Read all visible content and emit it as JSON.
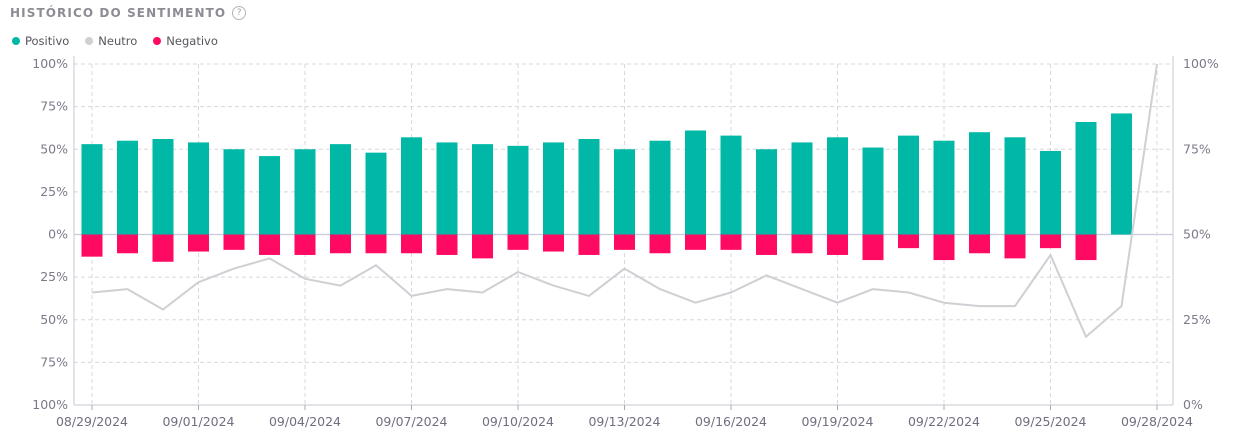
{
  "header": {
    "title": "HISTÓRICO DO SENTIMENTO",
    "help_icon": "question-circle-icon"
  },
  "legend": [
    {
      "label": "Positivo",
      "color": "#00b8a5"
    },
    {
      "label": "Neutro",
      "color": "#cfcfd4"
    },
    {
      "label": "Negativo",
      "color": "#ff0a62"
    }
  ],
  "chart_data": {
    "type": "bar",
    "x": [
      "08/29/2024",
      "08/30/2024",
      "08/31/2024",
      "09/01/2024",
      "09/02/2024",
      "09/03/2024",
      "09/04/2024",
      "09/05/2024",
      "09/06/2024",
      "09/07/2024",
      "09/08/2024",
      "09/09/2024",
      "09/10/2024",
      "09/11/2024",
      "09/12/2024",
      "09/13/2024",
      "09/14/2024",
      "09/15/2024",
      "09/16/2024",
      "09/17/2024",
      "09/18/2024",
      "09/19/2024",
      "09/20/2024",
      "09/21/2024",
      "09/22/2024",
      "09/23/2024",
      "09/24/2024",
      "09/25/2024",
      "09/26/2024",
      "09/27/2024",
      "09/28/2024"
    ],
    "x_tick_labels": [
      "08/29/2024",
      "09/01/2024",
      "09/04/2024",
      "09/07/2024",
      "09/10/2024",
      "09/13/2024",
      "09/16/2024",
      "09/19/2024",
      "09/22/2024",
      "09/25/2024",
      "09/28/2024"
    ],
    "series": [
      {
        "name": "Positivo",
        "type": "bar",
        "color": "#00b8a5",
        "values": [
          53,
          55,
          56,
          54,
          50,
          46,
          50,
          53,
          48,
          57,
          54,
          53,
          52,
          54,
          56,
          50,
          55,
          61,
          58,
          50,
          54,
          57,
          51,
          58,
          55,
          60,
          57,
          49,
          66,
          71,
          null
        ]
      },
      {
        "name": "Negativo",
        "type": "bar",
        "color": "#ff0a62",
        "values": [
          13,
          11,
          16,
          10,
          9,
          12,
          12,
          11,
          11,
          11,
          12,
          14,
          9,
          10,
          12,
          9,
          11,
          9,
          9,
          12,
          11,
          12,
          15,
          8,
          15,
          11,
          14,
          8,
          15,
          null,
          null
        ]
      },
      {
        "name": "Neutro",
        "type": "line",
        "axis": "right",
        "color": "#cfcfd4",
        "values": [
          33,
          34,
          28,
          36,
          40,
          43,
          37,
          35,
          41,
          32,
          34,
          33,
          39,
          35,
          32,
          40,
          34,
          30,
          33,
          38,
          34,
          30,
          34,
          33,
          30,
          29,
          29,
          44,
          20,
          29,
          100
        ]
      }
    ],
    "left_axis": {
      "ticks": [
        "100%",
        "75%",
        "50%",
        "25%",
        "0%",
        "25%",
        "50%",
        "75%",
        "100%"
      ],
      "ylim": [
        -100,
        100
      ]
    },
    "right_axis": {
      "ticks": [
        "100%",
        "75%",
        "50%",
        "25%",
        "0%"
      ],
      "ylim": [
        0,
        100
      ]
    },
    "grid": true
  }
}
